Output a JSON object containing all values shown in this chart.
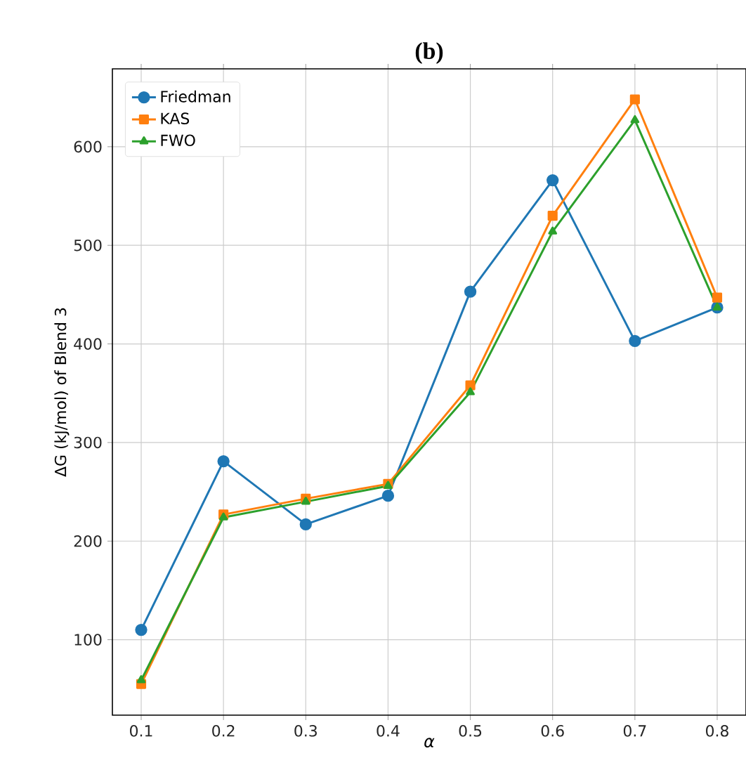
{
  "chart_data": {
    "type": "line",
    "title": "(b)",
    "xlabel": "α",
    "ylabel": "ΔG (kJ/mol) of Blend 3",
    "x": [
      0.1,
      0.2,
      0.3,
      0.4,
      0.5,
      0.6,
      0.7,
      0.8
    ],
    "series": [
      {
        "name": "Friedman",
        "color": "#1f77b4",
        "marker": "circle",
        "values": [
          110,
          281,
          217,
          246,
          453,
          566,
          403,
          437
        ]
      },
      {
        "name": "KAS",
        "color": "#ff7f0e",
        "marker": "square",
        "values": [
          55,
          227,
          243,
          258,
          358,
          530,
          648,
          447
        ]
      },
      {
        "name": "FWO",
        "color": "#2ca02c",
        "marker": "triangle",
        "values": [
          59,
          224,
          240,
          256,
          351,
          514,
          627,
          437
        ]
      }
    ],
    "xlim": [
      0.065,
      0.835
    ],
    "ylim": [
      23.5,
      679
    ],
    "xticks": [
      0.1,
      0.2,
      0.3,
      0.4,
      0.5,
      0.6,
      0.7,
      0.8
    ],
    "yticks": [
      100,
      200,
      300,
      400,
      500,
      600
    ],
    "grid": true,
    "legend": "top left",
    "line_style": "solid"
  }
}
